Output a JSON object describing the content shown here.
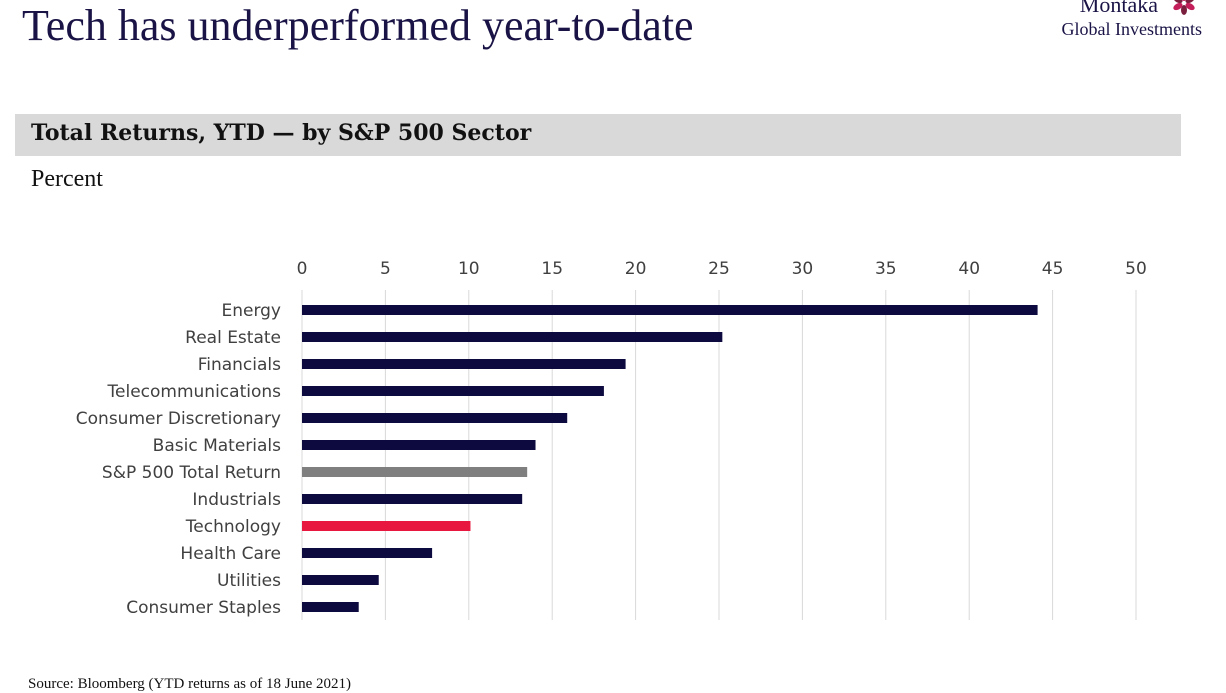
{
  "header": {
    "title": "Tech has underperformed year-to-date"
  },
  "logo": {
    "name": "Montaka",
    "subtitle": "Global Investments",
    "colors": [
      "#c41e5a",
      "#7a1f3d"
    ]
  },
  "section": {
    "title": "Total Returns, YTD — by S&P 500 Sector",
    "unit": "Percent"
  },
  "footer": {
    "source": "Source: Bloomberg (YTD returns as of 18 June 2021)"
  },
  "chart_data": {
    "type": "bar",
    "orientation": "horizontal",
    "title": "Total Returns, YTD — by S&P 500 Sector",
    "ylabel": "Percent",
    "xlim": [
      0,
      50
    ],
    "x_ticks": [
      "0",
      "5",
      "10",
      "15",
      "20",
      "25",
      "30",
      "35",
      "40",
      "45",
      "50"
    ],
    "x_axis_position": "top",
    "grid": true,
    "categories": [
      "Energy",
      "Real Estate",
      "Financials",
      "Telecommunications",
      "Consumer Discretionary",
      "Basic Materials",
      "S&P 500 Total Return",
      "Industrials",
      "Technology",
      "Health Care",
      "Utilities",
      "Consumer Staples"
    ],
    "values": [
      44.1,
      25.2,
      19.4,
      18.1,
      15.9,
      14.0,
      13.5,
      13.2,
      10.1,
      7.8,
      4.6,
      3.4
    ],
    "colors": [
      "#0c0a3e",
      "#0c0a3e",
      "#0c0a3e",
      "#0c0a3e",
      "#0c0a3e",
      "#0c0a3e",
      "#7f7f7f",
      "#0c0a3e",
      "#e8173f",
      "#0c0a3e",
      "#0c0a3e",
      "#0c0a3e"
    ],
    "gridline_color": "#d9d9d9"
  }
}
